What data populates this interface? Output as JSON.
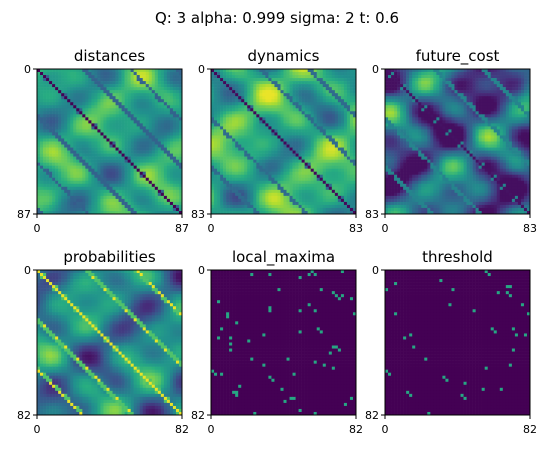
{
  "figure": {
    "suptitle": "Q: 3 alpha:      0.999 sigma:        2 t: 0.6"
  },
  "colors": {
    "viridis_low": "#440154",
    "viridis_mid": "#21918c",
    "viridis_high": "#fde725"
  },
  "chart_data": [
    {
      "type": "heatmap",
      "title": "distances",
      "colormap": "viridis",
      "xticks": [
        "0",
        "87"
      ],
      "yticks": [
        "0",
        "87"
      ],
      "xlim": [
        0,
        87
      ],
      "ylim": [
        87,
        0
      ],
      "style": "distance"
    },
    {
      "type": "heatmap",
      "title": "dynamics",
      "colormap": "viridis",
      "xticks": [
        "0",
        "83"
      ],
      "yticks": [
        "0",
        "83"
      ],
      "xlim": [
        0,
        83
      ],
      "ylim": [
        83,
        0
      ],
      "style": "dynamics"
    },
    {
      "type": "heatmap",
      "title": "future_cost",
      "colormap": "viridis",
      "xticks": [
        "0",
        "83"
      ],
      "yticks": [
        "0",
        "83"
      ],
      "xlim": [
        0,
        83
      ],
      "ylim": [
        83,
        0
      ],
      "style": "cost"
    },
    {
      "type": "heatmap",
      "title": "probabilities",
      "colormap": "viridis",
      "xticks": [
        "0",
        "82"
      ],
      "yticks": [
        "0",
        "82"
      ],
      "xlim": [
        0,
        82
      ],
      "ylim": [
        82,
        0
      ],
      "style": "prob"
    },
    {
      "type": "heatmap",
      "title": "local_maxima",
      "colormap": "viridis",
      "xticks": [
        "0",
        "82"
      ],
      "yticks": [
        "0",
        "82"
      ],
      "xlim": [
        0,
        82
      ],
      "ylim": [
        82,
        0
      ],
      "style": "maxima"
    },
    {
      "type": "heatmap",
      "title": "threshold",
      "colormap": "viridis",
      "xticks": [
        "0",
        "82"
      ],
      "yticks": [
        "0",
        "82"
      ],
      "xlim": [
        0,
        82
      ],
      "ylim": [
        82,
        0
      ],
      "style": "thresh"
    }
  ]
}
